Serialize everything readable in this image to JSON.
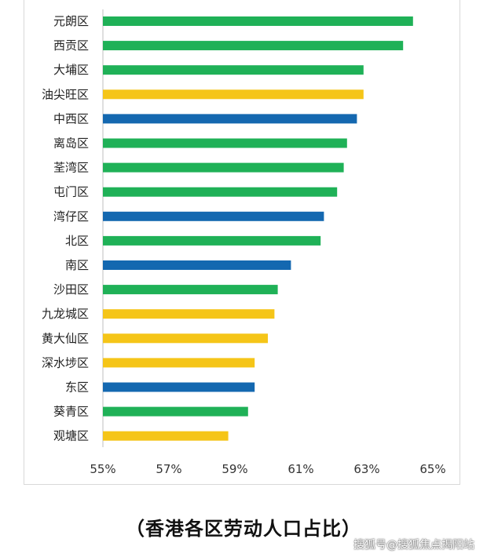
{
  "caption": "（香港各区劳动人口占比）",
  "watermark": "搜狐号@搜狐焦点揭阳站",
  "colors": {
    "green": "#1fb157",
    "yellow": "#f5c518",
    "blue": "#1468b0"
  },
  "chart_data": {
    "type": "bar",
    "orientation": "horizontal",
    "categories": [
      "元朗区",
      "西贡区",
      "大埔区",
      "油尖旺区",
      "中西区",
      "离岛区",
      "荃湾区",
      "屯门区",
      "湾仔区",
      "北区",
      "南区",
      "沙田区",
      "九龙城区",
      "黄大仙区",
      "深水埗区",
      "东区",
      "葵青区",
      "观塘区"
    ],
    "values": [
      64.4,
      64.1,
      62.9,
      62.9,
      62.7,
      62.4,
      62.3,
      62.1,
      61.7,
      61.6,
      60.7,
      60.3,
      60.2,
      60.0,
      59.6,
      59.6,
      59.4,
      58.8
    ],
    "bar_colors": [
      "green",
      "green",
      "green",
      "yellow",
      "blue",
      "green",
      "green",
      "green",
      "blue",
      "green",
      "blue",
      "green",
      "yellow",
      "yellow",
      "yellow",
      "blue",
      "green",
      "yellow"
    ],
    "xlim": [
      55,
      65
    ],
    "x_ticks": [
      "55%",
      "57%",
      "59%",
      "61%",
      "63%",
      "65%"
    ],
    "x_tick_values": [
      55,
      57,
      59,
      61,
      63,
      65
    ],
    "grid": false
  }
}
